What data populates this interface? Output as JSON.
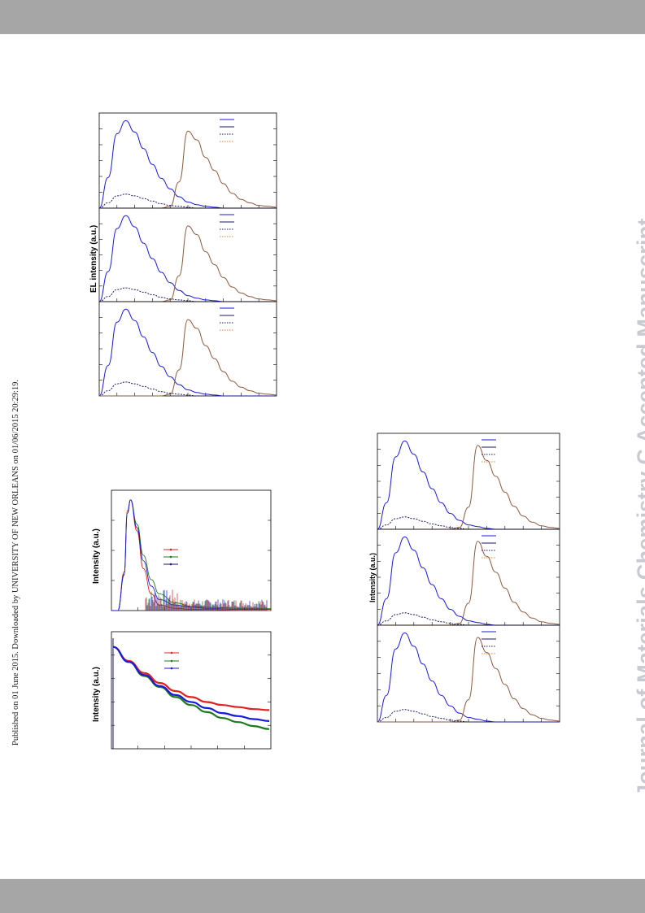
{
  "header": {
    "bar_color": "#a6a6a6"
  },
  "footer": {
    "bar_color": "#a6a6a6"
  },
  "side_note": "Published on 01 June 2015. Downloaded by UNIVERSITY OF NEW ORLEANS on 01/06/2015 20:29:19.",
  "watermark": "Journal of Materials Chemistry C Accepted Manuscript",
  "colors": {
    "blue": "#1a1ad9",
    "navy": "#1a1a66",
    "brown": "#8b5a3c",
    "orange": "#e08030",
    "red": "#e02020",
    "green": "#1e7a1e"
  },
  "chart_data": [
    {
      "type": "line",
      "panels": 3,
      "ylabel": "EL intensity (a.u.)",
      "x": [
        0,
        5,
        10,
        15,
        20,
        25,
        30,
        35,
        40,
        45,
        50,
        55,
        60,
        65,
        70,
        75,
        80,
        85,
        90,
        95,
        100
      ],
      "series": [
        {
          "style": "blue-solid",
          "values": [
            0.0,
            0.35,
            0.85,
            1.0,
            0.87,
            0.68,
            0.5,
            0.34,
            0.22,
            0.13,
            0.07,
            0.04,
            0.02,
            0.01,
            0.0,
            0.0,
            0.0,
            0.0,
            0.0,
            0.0,
            0.0
          ]
        },
        {
          "style": "navy-dotted",
          "values": [
            0.0,
            0.06,
            0.14,
            0.16,
            0.14,
            0.11,
            0.08,
            0.05,
            0.03,
            0.02,
            0.01,
            0.0,
            0.0,
            0.0,
            0.0,
            0.0,
            0.0,
            0.0,
            0.0,
            0.0,
            0.0
          ]
        },
        {
          "style": "brown-solid",
          "values": [
            0.0,
            0.0,
            0.0,
            0.0,
            0.0,
            0.0,
            0.0,
            0.0,
            0.02,
            0.3,
            0.88,
            0.78,
            0.58,
            0.43,
            0.28,
            0.17,
            0.1,
            0.06,
            0.03,
            0.02,
            0.01
          ]
        }
      ]
    },
    {
      "type": "line",
      "ylabel": "Intensity (a.u.)",
      "x": [
        0,
        4,
        8,
        10,
        12,
        16,
        20,
        25,
        30,
        40,
        50,
        60,
        80,
        100
      ],
      "series": [
        {
          "style": "red",
          "values": [
            0.0,
            0.0,
            0.35,
            0.9,
            1.0,
            0.72,
            0.38,
            0.15,
            0.05,
            0.02,
            0.01,
            0.01,
            0.0,
            0.0
          ]
        },
        {
          "style": "green",
          "values": [
            0.0,
            0.0,
            0.32,
            0.88,
            1.0,
            0.78,
            0.5,
            0.28,
            0.15,
            0.07,
            0.04,
            0.03,
            0.02,
            0.02
          ]
        },
        {
          "style": "blue",
          "values": [
            0.0,
            0.0,
            0.33,
            0.88,
            1.0,
            0.75,
            0.45,
            0.22,
            0.1,
            0.05,
            0.03,
            0.02,
            0.01,
            0.01
          ]
        }
      ]
    },
    {
      "type": "line",
      "ylabel": "Intensity (a.u.)",
      "x": [
        0,
        10,
        20,
        30,
        40,
        50,
        60,
        70,
        80,
        90,
        100
      ],
      "series": [
        {
          "style": "red",
          "values": [
            1.0,
            0.86,
            0.74,
            0.64,
            0.56,
            0.5,
            0.45,
            0.42,
            0.4,
            0.38,
            0.37
          ]
        },
        {
          "style": "green",
          "values": [
            1.0,
            0.85,
            0.71,
            0.6,
            0.5,
            0.42,
            0.35,
            0.29,
            0.25,
            0.21,
            0.18
          ]
        },
        {
          "style": "blue",
          "values": [
            1.0,
            0.85,
            0.72,
            0.61,
            0.52,
            0.45,
            0.39,
            0.34,
            0.31,
            0.28,
            0.26
          ]
        }
      ]
    },
    {
      "type": "line",
      "panels": 3,
      "ylabel": "Intensity (a.u.)",
      "x": [
        0,
        5,
        10,
        15,
        20,
        25,
        30,
        35,
        40,
        45,
        50,
        55,
        60,
        65,
        70,
        75,
        80,
        85,
        90,
        95,
        100
      ],
      "series": [
        {
          "style": "blue-solid",
          "values": [
            0.0,
            0.3,
            0.82,
            1.0,
            0.85,
            0.65,
            0.46,
            0.3,
            0.18,
            0.1,
            0.05,
            0.03,
            0.01,
            0.0,
            0.0,
            0.0,
            0.0,
            0.0,
            0.0,
            0.0,
            0.0
          ]
        },
        {
          "style": "navy-dotted",
          "values": [
            0.0,
            0.05,
            0.12,
            0.14,
            0.12,
            0.09,
            0.06,
            0.04,
            0.02,
            0.01,
            0.0,
            0.0,
            0.0,
            0.0,
            0.0,
            0.0,
            0.0,
            0.0,
            0.0,
            0.0,
            0.0
          ]
        },
        {
          "style": "brown-solid",
          "values": [
            0.0,
            0.0,
            0.0,
            0.0,
            0.0,
            0.0,
            0.0,
            0.0,
            0.0,
            0.02,
            0.25,
            0.95,
            0.78,
            0.6,
            0.42,
            0.26,
            0.15,
            0.08,
            0.04,
            0.02,
            0.01
          ]
        }
      ]
    }
  ]
}
